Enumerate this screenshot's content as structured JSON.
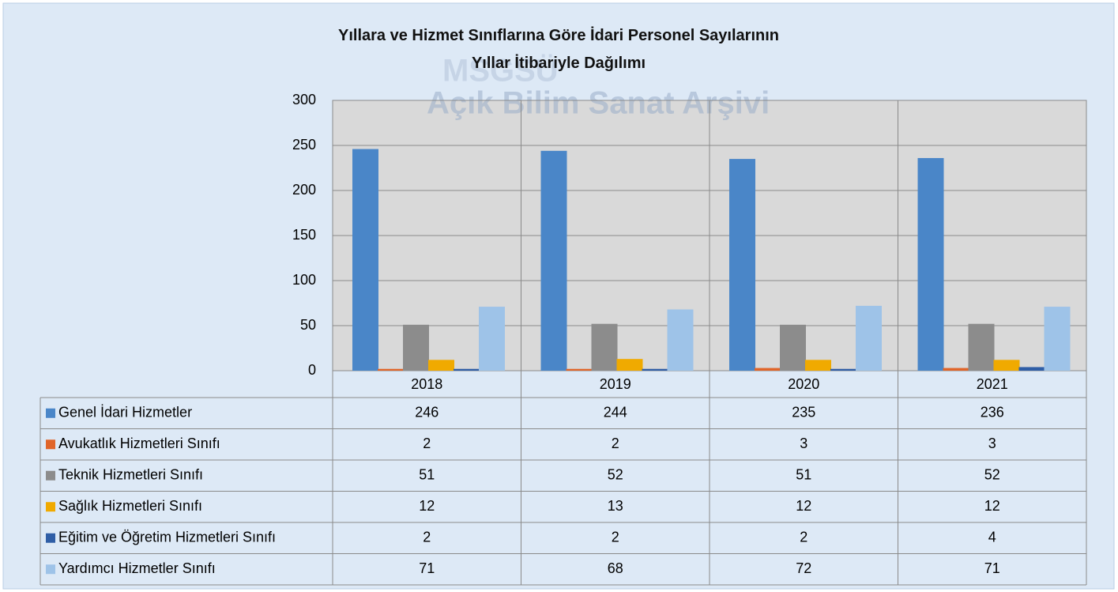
{
  "chart_data": {
    "type": "bar",
    "title": "Yıllara ve Hizmet Sınıflarına Göre İdari Personel Sayılarının Yıllar İtibariyle Dağılımı",
    "watermark": [
      "MSGSÜ",
      "Açık Bilim Sanat Arşivi"
    ],
    "categories": [
      "2018",
      "2019",
      "2020",
      "2021"
    ],
    "series": [
      {
        "name": "Genel İdari Hizmetler",
        "color": "#4a86c8",
        "values": [
          246,
          244,
          235,
          236
        ]
      },
      {
        "name": "Avukatlık Hizmetleri Sınıfı",
        "color": "#e0652a",
        "values": [
          2,
          2,
          3,
          3
        ]
      },
      {
        "name": "Teknik Hizmetleri Sınıfı",
        "color": "#8c8c8c",
        "values": [
          51,
          52,
          51,
          52
        ]
      },
      {
        "name": "Sağlık Hizmetleri Sınıfı",
        "color": "#f0aa00",
        "values": [
          12,
          13,
          12,
          12
        ]
      },
      {
        "name": "Eğitim ve Öğretim Hizmetleri Sınıfı",
        "color": "#2f5ea6",
        "values": [
          2,
          2,
          2,
          4
        ]
      },
      {
        "name": "Yardımcı Hizmetler Sınıfı",
        "color": "#9ec3e8",
        "values": [
          71,
          68,
          72,
          71
        ]
      }
    ],
    "ylim": [
      0,
      300
    ],
    "yticks": [
      0,
      50,
      100,
      150,
      200,
      250,
      300
    ],
    "grid": true
  }
}
